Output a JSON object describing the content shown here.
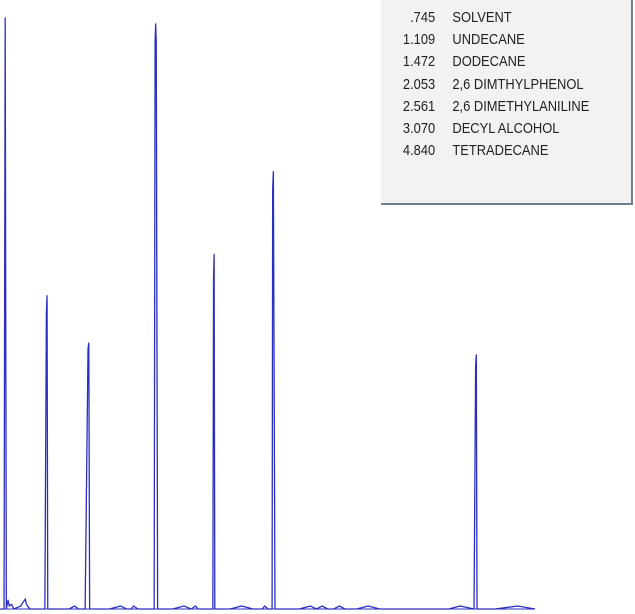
{
  "chart_data": {
    "type": "line",
    "title": "",
    "xlabel": "",
    "ylabel": "",
    "grid": false,
    "series_color": "#2b2fc0",
    "x": [
      0.7,
      0.735,
      0.745,
      0.755,
      0.77,
      0.78,
      0.8,
      0.82,
      0.88,
      0.92,
      0.93,
      0.94,
      0.96,
      1.0,
      1.09,
      1.103,
      1.109,
      1.115,
      1.13,
      1.2,
      1.3,
      1.35,
      1.38,
      1.4,
      1.44,
      1.465,
      1.472,
      1.479,
      1.49,
      1.55,
      1.65,
      1.75,
      1.8,
      1.84,
      1.86,
      1.9,
      1.95,
      2.04,
      2.048,
      2.053,
      2.058,
      2.07,
      2.2,
      2.3,
      2.36,
      2.4,
      2.42,
      2.46,
      2.55,
      2.556,
      2.561,
      2.567,
      2.58,
      2.7,
      2.8,
      2.9,
      2.98,
      3.0,
      3.03,
      3.06,
      3.065,
      3.07,
      3.076,
      3.09,
      3.2,
      3.3,
      3.4,
      3.45,
      3.5,
      3.55,
      3.6,
      3.65,
      3.7,
      3.8,
      3.9,
      4.0,
      4.2,
      4.4,
      4.6,
      4.7,
      4.82,
      4.834,
      4.84,
      4.846,
      4.87,
      5.0,
      5.2,
      5.35
    ],
    "y": [
      0,
      0,
      100,
      0,
      1.5,
      0.5,
      0.8,
      0,
      0.5,
      1.7,
      0.8,
      0.5,
      0,
      0,
      0,
      50,
      53,
      0,
      0,
      0,
      0,
      0.5,
      0,
      0,
      0,
      44,
      45,
      0,
      0,
      0,
      0,
      0.5,
      0,
      0,
      0.5,
      0,
      0,
      0,
      96,
      99,
      96,
      0,
      0,
      0.5,
      0,
      0.5,
      0,
      0,
      0,
      56,
      60,
      0,
      0,
      0,
      0.5,
      0,
      0,
      0.5,
      0,
      0,
      0,
      71,
      74,
      0,
      0,
      0,
      0.5,
      0,
      0.5,
      0,
      0,
      0.5,
      0,
      0,
      0.5,
      0,
      0,
      0,
      0,
      0.5,
      0,
      41,
      43,
      0,
      0,
      0,
      0.5,
      0
    ],
    "xlim": [
      0.7,
      5.35
    ],
    "ylim": [
      0,
      100
    ]
  },
  "legend": [
    {
      "time": ".745",
      "name": "SOLVENT"
    },
    {
      "time": "1.109",
      "name": "UNDECANE"
    },
    {
      "time": "1.472",
      "name": "DODECANE"
    },
    {
      "time": "2.053",
      "name": "2,6 DIMTHYLPHENOL"
    },
    {
      "time": "2.561",
      "name": "2,6 DIMETHYLANILINE"
    },
    {
      "time": "3.070",
      "name": "DECYL ALCOHOL"
    },
    {
      "time": "4.840",
      "name": "TETRADECANE"
    }
  ]
}
